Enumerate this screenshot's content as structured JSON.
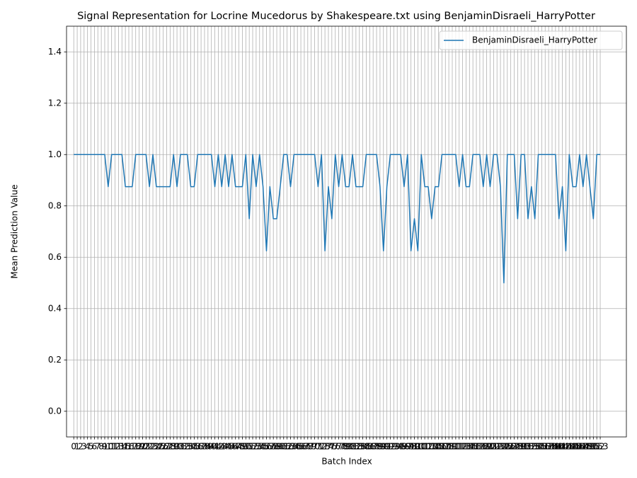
{
  "chart_data": {
    "type": "line",
    "title": "Signal Representation for Locrine Mucedorus by Shakespeare.txt using BenjaminDisraeli_HarryPotter",
    "x_label": "Batch Index",
    "y_label": "Mean Prediction Value",
    "x": [
      0,
      1,
      2,
      3,
      4,
      5,
      6,
      7,
      8,
      9,
      10,
      11,
      12,
      13,
      14,
      15,
      16,
      17,
      18,
      19,
      20,
      21,
      22,
      23,
      24,
      25,
      26,
      27,
      28,
      29,
      30,
      31,
      32,
      33,
      34,
      35,
      36,
      37,
      38,
      39,
      40,
      41,
      42,
      43,
      44,
      45,
      46,
      47,
      48,
      49,
      50,
      51,
      52,
      53,
      54,
      55,
      56,
      57,
      58,
      59,
      60,
      61,
      62,
      63,
      64,
      65,
      66,
      67,
      68,
      69,
      70,
      71,
      72,
      73,
      74,
      75,
      76,
      77,
      78,
      79,
      80,
      81,
      82,
      83,
      84,
      85,
      86,
      87,
      88,
      89,
      90,
      91,
      92,
      93,
      94,
      95,
      96,
      97,
      98,
      99,
      100,
      101,
      102,
      103,
      104,
      105,
      106,
      107,
      108,
      109,
      110,
      111,
      112,
      113,
      114,
      115,
      116,
      117,
      118,
      119,
      120,
      121,
      122,
      123,
      124,
      125,
      126,
      127,
      128,
      129,
      130,
      131,
      132,
      133,
      134,
      135,
      136,
      137,
      138,
      139,
      140,
      141,
      142,
      143,
      144,
      145,
      146,
      147,
      148,
      149,
      150,
      151,
      152,
      153
    ],
    "series": [
      {
        "name": "BenjaminDisraeli_HarryPotter",
        "color": "#1f77b4",
        "values": [
          1,
          1,
          1,
          1,
          1,
          1,
          1,
          1,
          1,
          1,
          0.875,
          1,
          1,
          1,
          1,
          0.875,
          0.875,
          0.875,
          1,
          1,
          1,
          1,
          0.875,
          1,
          0.875,
          0.875,
          0.875,
          0.875,
          0.875,
          1,
          0.875,
          1,
          1,
          1,
          0.875,
          0.875,
          1,
          1,
          1,
          1,
          1,
          0.875,
          1,
          0.875,
          1,
          0.875,
          1,
          0.875,
          0.875,
          0.875,
          1,
          0.75,
          1,
          0.875,
          1,
          0.875,
          0.625,
          0.875,
          0.75,
          0.75,
          0.875,
          1,
          1,
          0.875,
          1,
          1,
          1,
          1,
          1,
          1,
          1,
          0.875,
          1,
          0.625,
          0.875,
          0.75,
          1,
          0.875,
          1,
          0.875,
          0.875,
          1,
          0.875,
          0.875,
          0.875,
          1,
          1,
          1,
          1,
          0.875,
          0.625,
          0.875,
          1,
          1,
          1,
          1,
          0.875,
          1,
          0.625,
          0.75,
          0.625,
          1,
          0.875,
          0.875,
          0.75,
          0.875,
          0.875,
          1,
          1,
          1,
          1,
          1,
          0.875,
          1,
          0.875,
          0.875,
          1,
          1,
          1,
          0.875,
          1,
          0.875,
          1,
          1,
          0.875,
          0.5,
          1,
          1,
          1,
          0.75,
          1,
          1,
          0.75,
          0.875,
          0.75,
          1,
          1,
          1,
          1,
          1,
          1,
          0.75,
          0.875,
          0.625,
          1,
          0.875,
          0.875,
          1,
          0.875,
          1,
          0.875,
          0.75,
          1,
          1
        ]
      }
    ],
    "xlim": [
      -2.1,
      160.6
    ],
    "xticks": [
      0,
      1,
      2,
      3,
      4,
      5,
      6,
      7,
      8,
      9,
      10,
      11,
      12,
      13,
      14,
      15,
      16,
      17,
      18,
      19,
      20,
      21,
      22,
      23,
      24,
      25,
      26,
      27,
      28,
      29,
      30,
      31,
      32,
      33,
      34,
      35,
      36,
      37,
      38,
      39,
      40,
      41,
      42,
      43,
      44,
      45,
      46,
      47,
      48,
      49,
      50,
      51,
      52,
      53,
      54,
      55,
      56,
      57,
      58,
      59,
      60,
      61,
      62,
      63,
      64,
      65,
      66,
      67,
      68,
      69,
      70,
      71,
      72,
      73,
      74,
      75,
      76,
      77,
      78,
      79,
      80,
      81,
      82,
      83,
      84,
      85,
      86,
      87,
      88,
      89,
      90,
      91,
      92,
      93,
      94,
      95,
      96,
      97,
      98,
      99,
      100,
      101,
      102,
      103,
      104,
      105,
      106,
      107,
      108,
      109,
      110,
      111,
      112,
      113,
      114,
      115,
      116,
      117,
      118,
      119,
      120,
      121,
      122,
      123,
      124,
      125,
      126,
      127,
      128,
      129,
      130,
      131,
      132,
      133,
      134,
      135,
      136,
      137,
      138,
      139,
      140,
      141,
      142,
      143,
      144,
      145,
      146,
      147,
      148,
      149,
      150,
      151,
      152,
      153
    ],
    "ylim": [
      -0.1,
      1.5
    ],
    "yticks": [
      {
        "value": 0,
        "label": "0.0"
      },
      0.2,
      0.4,
      0.6,
      0.8,
      {
        "value": 1,
        "label": "1.0"
      },
      1.2,
      1.4
    ],
    "grid": true,
    "legend": "upper right"
  }
}
